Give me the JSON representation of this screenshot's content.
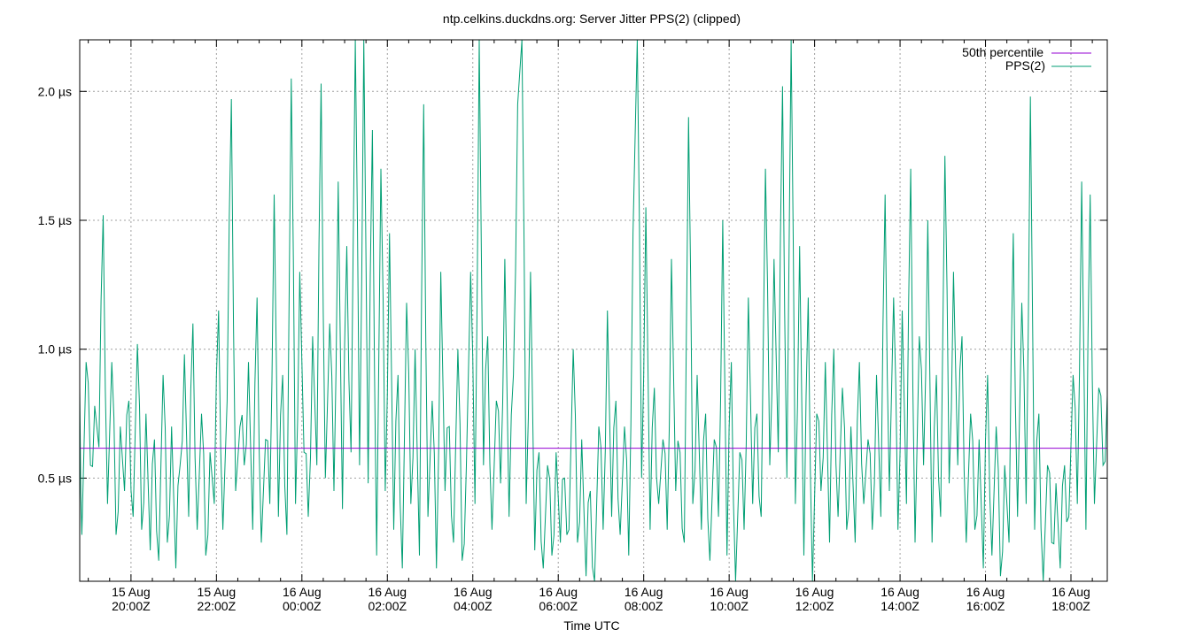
{
  "chart_data": {
    "type": "line",
    "title": "ntp.celkins.duckdns.org: Server Jitter PPS(2) (clipped)",
    "xlabel": "Time UTC",
    "ylabel": "",
    "x_range_hours": [
      18.8,
      42.85
    ],
    "ylim": [
      0.1,
      2.2
    ],
    "y_unit": "µs",
    "y_ticks": [
      {
        "value": 0.5,
        "label": "0.5 µs"
      },
      {
        "value": 1.0,
        "label": "1.0 µs"
      },
      {
        "value": 1.5,
        "label": "1.5 µs"
      },
      {
        "value": 2.0,
        "label": "2.0 µs"
      }
    ],
    "x_ticks": [
      {
        "value": 20,
        "date": "15 Aug",
        "time": "20:00Z"
      },
      {
        "value": 22,
        "date": "15 Aug",
        "time": "22:00Z"
      },
      {
        "value": 24,
        "date": "16 Aug",
        "time": "00:00Z"
      },
      {
        "value": 26,
        "date": "16 Aug",
        "time": "02:00Z"
      },
      {
        "value": 28,
        "date": "16 Aug",
        "time": "04:00Z"
      },
      {
        "value": 30,
        "date": "16 Aug",
        "time": "06:00Z"
      },
      {
        "value": 32,
        "date": "16 Aug",
        "time": "08:00Z"
      },
      {
        "value": 34,
        "date": "16 Aug",
        "time": "10:00Z"
      },
      {
        "value": 36,
        "date": "16 Aug",
        "time": "12:00Z"
      },
      {
        "value": 38,
        "date": "16 Aug",
        "time": "14:00Z"
      },
      {
        "value": 40,
        "date": "16 Aug",
        "time": "16:00Z"
      },
      {
        "value": 42,
        "date": "16 Aug",
        "time": "18:00Z"
      }
    ],
    "grid": true,
    "legend_position": "top-right",
    "series": [
      {
        "name": "50th percentile",
        "color": "#9400d3",
        "value": 0.616
      },
      {
        "name": "PPS(2)",
        "color": "#009e73",
        "points": [
          [
            18.8,
            0.85
          ],
          [
            18.85,
            0.28
          ],
          [
            18.95,
            0.95
          ],
          [
            19.05,
            0.55
          ],
          [
            19.15,
            0.78
          ],
          [
            19.25,
            0.62
          ],
          [
            19.35,
            1.52
          ],
          [
            19.45,
            0.4
          ],
          [
            19.55,
            0.95
          ],
          [
            19.65,
            0.28
          ],
          [
            19.75,
            0.7
          ],
          [
            19.85,
            0.45
          ],
          [
            19.95,
            0.8
          ],
          [
            20.05,
            0.35
          ],
          [
            20.15,
            1.02
          ],
          [
            20.25,
            0.3
          ],
          [
            20.35,
            0.75
          ],
          [
            20.45,
            0.22
          ],
          [
            20.55,
            0.65
          ],
          [
            20.65,
            0.18
          ],
          [
            20.75,
            0.9
          ],
          [
            20.85,
            0.25
          ],
          [
            20.95,
            0.7
          ],
          [
            21.05,
            0.15
          ],
          [
            21.15,
            0.55
          ],
          [
            21.25,
            0.98
          ],
          [
            21.35,
            0.35
          ],
          [
            21.45,
            1.1
          ],
          [
            21.55,
            0.3
          ],
          [
            21.65,
            0.75
          ],
          [
            21.75,
            0.2
          ],
          [
            21.85,
            0.6
          ],
          [
            21.95,
            0.4
          ],
          [
            22.05,
            1.15
          ],
          [
            22.15,
            0.3
          ],
          [
            22.25,
            0.8
          ],
          [
            22.35,
            1.97
          ],
          [
            22.45,
            0.45
          ],
          [
            22.55,
            0.7
          ],
          [
            22.65,
            0.55
          ],
          [
            22.75,
            0.95
          ],
          [
            22.85,
            0.3
          ],
          [
            22.95,
            1.2
          ],
          [
            23.05,
            0.25
          ],
          [
            23.15,
            0.65
          ],
          [
            23.25,
            0.4
          ],
          [
            23.35,
            1.6
          ],
          [
            23.45,
            0.35
          ],
          [
            23.55,
            0.9
          ],
          [
            23.65,
            0.28
          ],
          [
            23.75,
            2.05
          ],
          [
            23.85,
            0.4
          ],
          [
            23.95,
            1.3
          ],
          [
            24.05,
            0.6
          ],
          [
            24.15,
            0.35
          ],
          [
            24.25,
            1.05
          ],
          [
            24.35,
            0.55
          ],
          [
            24.45,
            2.03
          ],
          [
            24.55,
            0.5
          ],
          [
            24.65,
            1.1
          ],
          [
            24.75,
            0.45
          ],
          [
            24.85,
            1.65
          ],
          [
            24.95,
            0.38
          ],
          [
            25.05,
            1.4
          ],
          [
            25.15,
            0.6
          ],
          [
            25.25,
            2.2
          ],
          [
            25.35,
            0.55
          ],
          [
            25.45,
            2.2
          ],
          [
            25.55,
            0.48
          ],
          [
            25.65,
            1.85
          ],
          [
            25.75,
            0.2
          ],
          [
            25.85,
            1.7
          ],
          [
            25.95,
            0.45
          ],
          [
            26.05,
            1.45
          ],
          [
            26.15,
            0.3
          ],
          [
            26.25,
            0.9
          ],
          [
            26.35,
            0.15
          ],
          [
            26.45,
            1.18
          ],
          [
            26.55,
            0.4
          ],
          [
            26.65,
            1.0
          ],
          [
            26.75,
            0.2
          ],
          [
            26.85,
            1.95
          ],
          [
            26.95,
            0.35
          ],
          [
            27.05,
            0.8
          ],
          [
            27.15,
            0.15
          ],
          [
            27.25,
            1.3
          ],
          [
            27.35,
            0.45
          ],
          [
            27.45,
            0.7
          ],
          [
            27.55,
            0.25
          ],
          [
            27.65,
            1.0
          ],
          [
            27.75,
            0.18
          ],
          [
            27.85,
            0.55
          ],
          [
            27.95,
            1.3
          ],
          [
            28.05,
            0.4
          ],
          [
            28.15,
            2.2
          ],
          [
            28.25,
            0.55
          ],
          [
            28.35,
            1.05
          ],
          [
            28.45,
            0.3
          ],
          [
            28.55,
            0.8
          ],
          [
            28.65,
            0.48
          ],
          [
            28.75,
            1.35
          ],
          [
            28.85,
            0.35
          ],
          [
            28.95,
            0.9
          ],
          [
            29.05,
            1.95
          ],
          [
            29.15,
            2.2
          ],
          [
            29.25,
            0.4
          ],
          [
            29.35,
            1.3
          ],
          [
            29.45,
            0.22
          ],
          [
            29.55,
            0.6
          ],
          [
            29.65,
            0.15
          ],
          [
            29.75,
            0.55
          ],
          [
            29.85,
            0.2
          ],
          [
            29.95,
            0.6
          ],
          [
            30.05,
            0.25
          ],
          [
            30.15,
            0.5
          ],
          [
            30.25,
            0.3
          ],
          [
            30.35,
            1.0
          ],
          [
            30.45,
            0.25
          ],
          [
            30.55,
            0.65
          ],
          [
            30.65,
            0.12
          ],
          [
            30.75,
            0.45
          ],
          [
            30.85,
            0.1
          ],
          [
            30.95,
            0.7
          ],
          [
            31.05,
            0.3
          ],
          [
            31.15,
            1.15
          ],
          [
            31.25,
            0.35
          ],
          [
            31.35,
            0.8
          ],
          [
            31.45,
            0.28
          ],
          [
            31.55,
            0.7
          ],
          [
            31.65,
            0.2
          ],
          [
            31.75,
            1.45
          ],
          [
            31.85,
            2.2
          ],
          [
            31.95,
            0.5
          ],
          [
            32.05,
            1.55
          ],
          [
            32.15,
            0.3
          ],
          [
            32.25,
            0.85
          ],
          [
            32.35,
            0.4
          ],
          [
            32.45,
            0.65
          ],
          [
            32.55,
            0.3
          ],
          [
            32.65,
            1.35
          ],
          [
            32.75,
            0.45
          ],
          [
            32.85,
            0.6
          ],
          [
            32.95,
            0.25
          ],
          [
            33.05,
            1.9
          ],
          [
            33.15,
            0.4
          ],
          [
            33.25,
            0.9
          ],
          [
            33.35,
            0.3
          ],
          [
            33.45,
            0.75
          ],
          [
            33.55,
            0.18
          ],
          [
            33.65,
            0.65
          ],
          [
            33.75,
            0.35
          ],
          [
            33.85,
            1.5
          ],
          [
            33.95,
            0.2
          ],
          [
            34.05,
            0.95
          ],
          [
            34.15,
            0.1
          ],
          [
            34.25,
            0.6
          ],
          [
            34.35,
            0.3
          ],
          [
            34.45,
            1.2
          ],
          [
            34.55,
            0.4
          ],
          [
            34.65,
            0.75
          ],
          [
            34.75,
            0.35
          ],
          [
            34.85,
            1.7
          ],
          [
            34.95,
            0.55
          ],
          [
            35.05,
            1.35
          ],
          [
            35.15,
            0.6
          ],
          [
            35.25,
            2.02
          ],
          [
            35.35,
            0.5
          ],
          [
            35.45,
            2.2
          ],
          [
            35.55,
            0.4
          ],
          [
            35.65,
            1.4
          ],
          [
            35.75,
            0.2
          ],
          [
            35.85,
            1.2
          ],
          [
            35.95,
            0.1
          ],
          [
            36.05,
            0.75
          ],
          [
            36.15,
            0.45
          ],
          [
            36.25,
            0.95
          ],
          [
            36.35,
            0.25
          ],
          [
            36.45,
            1.0
          ],
          [
            36.55,
            0.35
          ],
          [
            36.65,
            0.85
          ],
          [
            36.75,
            0.3
          ],
          [
            36.85,
            0.7
          ],
          [
            36.95,
            0.25
          ],
          [
            37.05,
            0.95
          ],
          [
            37.15,
            0.4
          ],
          [
            37.25,
            0.65
          ],
          [
            37.35,
            0.3
          ],
          [
            37.45,
            0.9
          ],
          [
            37.55,
            0.35
          ],
          [
            37.65,
            1.6
          ],
          [
            37.75,
            0.45
          ],
          [
            37.85,
            1.2
          ],
          [
            37.95,
            0.3
          ],
          [
            38.05,
            1.15
          ],
          [
            38.15,
            0.4
          ],
          [
            38.25,
            1.7
          ],
          [
            38.35,
            0.25
          ],
          [
            38.45,
            1.05
          ],
          [
            38.55,
            0.55
          ],
          [
            38.65,
            1.5
          ],
          [
            38.75,
            0.25
          ],
          [
            38.85,
            0.9
          ],
          [
            38.95,
            0.35
          ],
          [
            39.05,
            1.75
          ],
          [
            39.15,
            0.48
          ],
          [
            39.25,
            1.3
          ],
          [
            39.35,
            0.55
          ],
          [
            39.45,
            1.05
          ],
          [
            39.55,
            0.25
          ],
          [
            39.65,
            0.75
          ],
          [
            39.75,
            0.3
          ],
          [
            39.85,
            0.65
          ],
          [
            39.95,
            0.15
          ],
          [
            40.05,
            0.9
          ],
          [
            40.15,
            0.2
          ],
          [
            40.25,
            0.7
          ],
          [
            40.35,
            0.12
          ],
          [
            40.45,
            0.55
          ],
          [
            40.55,
            0.25
          ],
          [
            40.65,
            1.45
          ],
          [
            40.75,
            0.35
          ],
          [
            40.85,
            1.18
          ],
          [
            40.95,
            0.4
          ],
          [
            41.05,
            1.98
          ],
          [
            41.15,
            0.3
          ],
          [
            41.25,
            0.75
          ],
          [
            41.35,
            0.1
          ],
          [
            41.45,
            0.55
          ],
          [
            41.55,
            0.25
          ],
          [
            41.65,
            0.48
          ],
          [
            41.75,
            0.15
          ],
          [
            41.85,
            0.55
          ],
          [
            41.95,
            0.35
          ],
          [
            42.05,
            0.9
          ],
          [
            42.15,
            0.4
          ],
          [
            42.25,
            1.65
          ],
          [
            42.35,
            0.3
          ],
          [
            42.45,
            1.6
          ],
          [
            42.55,
            0.4
          ],
          [
            42.65,
            0.85
          ],
          [
            42.75,
            0.55
          ],
          [
            42.85,
            0.82
          ]
        ]
      }
    ]
  }
}
